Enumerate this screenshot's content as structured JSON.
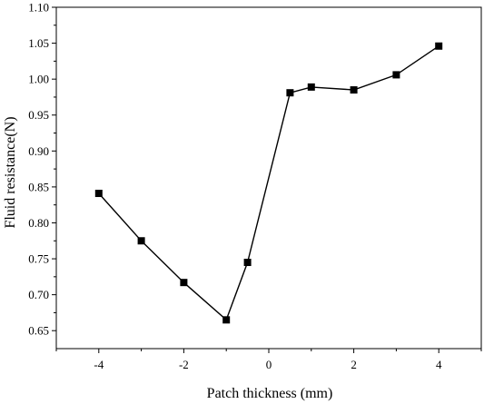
{
  "chart_data": {
    "type": "line",
    "title": "",
    "xlabel": "Patch thickness (mm)",
    "ylabel": "Fluid resistance(N)",
    "xlim": [
      -5,
      5
    ],
    "ylim": [
      0.625,
      1.1
    ],
    "x_ticks": [
      -4,
      -2,
      0,
      2,
      4
    ],
    "x_tick_labels": [
      "-4",
      "-2",
      "0",
      "2",
      "4"
    ],
    "y_ticks": [
      0.65,
      0.7,
      0.75,
      0.8,
      0.85,
      0.9,
      0.95,
      1.0,
      1.05,
      1.1
    ],
    "y_tick_labels": [
      "0.65",
      "0.70",
      "0.75",
      "0.80",
      "0.85",
      "0.90",
      "0.95",
      "1.00",
      "1.05",
      "1.10"
    ],
    "grid": false,
    "legend": "none",
    "series": [
      {
        "x": [
          -4,
          -3,
          -2,
          -1,
          -0.5,
          0.5,
          1,
          2,
          3,
          4
        ],
        "y": [
          0.841,
          0.775,
          0.717,
          0.665,
          0.745,
          0.981,
          0.989,
          0.985,
          1.006,
          1.046
        ],
        "color": "#000000",
        "marker": "square"
      }
    ]
  }
}
